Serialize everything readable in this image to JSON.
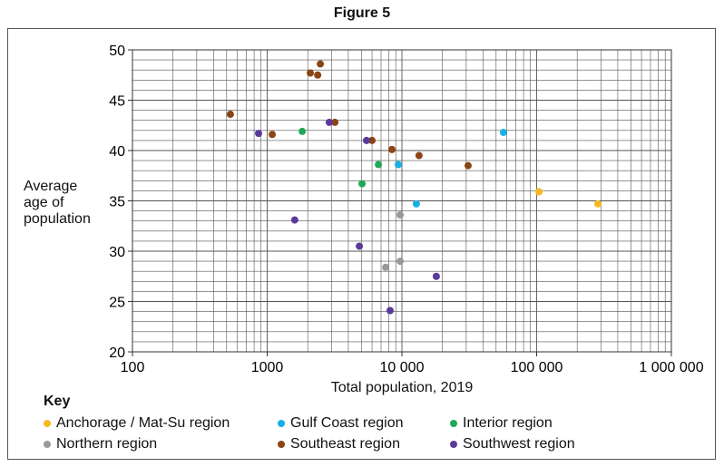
{
  "chart_data": {
    "type": "scatter",
    "title": "Figure 5",
    "xlabel": "Total population, 2019",
    "ylabel": "Average age of population",
    "ylabel_lines": [
      "Average",
      "age of",
      "population"
    ],
    "xscale": "log",
    "xlim": [
      100,
      1000000
    ],
    "ylim": [
      20,
      50
    ],
    "xticks": [
      {
        "v": 100,
        "label": "100"
      },
      {
        "v": 1000,
        "label": "1000"
      },
      {
        "v": 10000,
        "label": "10 000"
      },
      {
        "v": 100000,
        "label": "100 000"
      },
      {
        "v": 1000000,
        "label": "1 000 000"
      }
    ],
    "yticks": [
      20,
      25,
      30,
      35,
      40,
      45,
      50
    ],
    "grid": true,
    "legend_title": "Key",
    "legend_placement": "bottom",
    "series": [
      {
        "name": "Anchorage / Mat-Su region",
        "color": "#f9b820",
        "points": [
          [
            104000,
            35.9
          ],
          [
            285000,
            34.7
          ]
        ]
      },
      {
        "name": "Gulf Coast region",
        "color": "#1ab0e6",
        "points": [
          [
            9400,
            38.6
          ],
          [
            12800,
            34.7
          ],
          [
            56700,
            41.8
          ]
        ]
      },
      {
        "name": "Interior region",
        "color": "#21a85a",
        "points": [
          [
            1820,
            41.9
          ],
          [
            5060,
            36.7
          ],
          [
            6690,
            38.6
          ]
        ]
      },
      {
        "name": "Northern region",
        "color": "#999999",
        "points": [
          [
            9700,
            33.6
          ],
          [
            7570,
            28.4
          ],
          [
            9700,
            29.0
          ]
        ]
      },
      {
        "name": "Southeast region",
        "color": "#8b4513",
        "points": [
          [
            533,
            43.6
          ],
          [
            1090,
            41.6
          ],
          [
            2090,
            47.7
          ],
          [
            2480,
            48.6
          ],
          [
            2370,
            47.5
          ],
          [
            3180,
            42.8
          ],
          [
            6000,
            41.0
          ],
          [
            8430,
            40.1
          ],
          [
            13400,
            39.5
          ],
          [
            31000,
            38.5
          ]
        ]
      },
      {
        "name": "Southwest region",
        "color": "#5b3a9a",
        "points": [
          [
            863,
            41.7
          ],
          [
            1600,
            33.1
          ],
          [
            2890,
            42.8
          ],
          [
            4830,
            30.5
          ],
          [
            5460,
            41.0
          ],
          [
            8170,
            24.1
          ],
          [
            18000,
            27.5
          ]
        ]
      }
    ]
  }
}
